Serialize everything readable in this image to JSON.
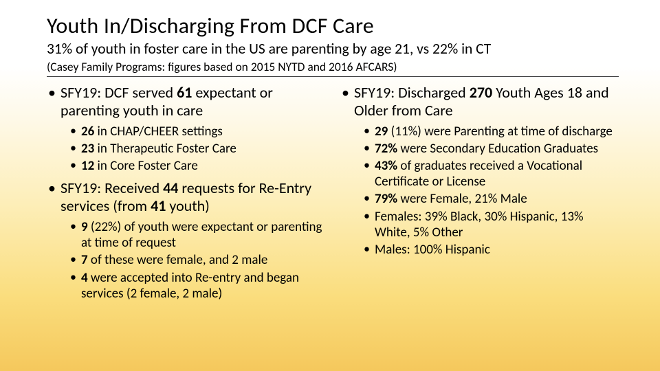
{
  "title": "Youth In/Discharging From DCF Care",
  "subtitle": "31% of youth in foster care in the US are parenting by age 21, vs 22% in CT",
  "source": "(Casey Family Programs: figures based on 2015 NYTD and 2016 AFCARS)",
  "colors": {
    "text": "#000000",
    "rule": "#3b3b3b",
    "bg_top": "#ffffff",
    "bg_bottom": "#f5c85c"
  },
  "typography": {
    "family": "Calibri",
    "title_size_pt": 24,
    "subtitle_size_pt": 16,
    "source_size_pt": 13,
    "lvl1_size_pt": 16,
    "lvl2_size_pt": 14
  },
  "left": {
    "items": [
      {
        "pre": "SFY19: DCF served ",
        "bold": "61",
        "post": " expectant or parenting youth in care",
        "sub": [
          {
            "pre": "",
            "bold": "26",
            "post": " in CHAP/CHEER settings"
          },
          {
            "pre": "",
            "bold": "23",
            "post": " in Therapeutic Foster Care"
          },
          {
            "pre": "",
            "bold": "12",
            "post": " in Core Foster Care"
          }
        ]
      },
      {
        "pre": "SFY19: Received ",
        "bold": "44",
        "post": " requests for Re-Entry services (from ",
        "bold2": "41",
        "post2": " youth)",
        "sub": [
          {
            "pre": "",
            "bold": "9",
            "post": " (22%) of youth were expectant or parenting at time of request"
          },
          {
            "pre": "",
            "bold": "7",
            "post": " of these were female, and 2 male"
          },
          {
            "pre": "",
            "bold": "4",
            "post": " were accepted into Re-entry and began services (2 female, 2 male)"
          }
        ]
      }
    ]
  },
  "right": {
    "items": [
      {
        "pre": "SFY19: Discharged ",
        "bold": "270",
        "post": " Youth Ages 18 and Older from Care",
        "sub": [
          {
            "pre": "",
            "bold": "29",
            "post": " (11%) were Parenting at time of discharge"
          },
          {
            "pre": "",
            "bold": "72%",
            "post": " were Secondary Education Graduates"
          },
          {
            "pre": "",
            "bold": "43%",
            "post": " of graduates received a Vocational Certificate or License"
          },
          {
            "pre": "",
            "bold": "79%",
            "post": " were Female, 21% Male"
          },
          {
            "pre": "Females: 39% Black, 30% Hispanic, 13% White, 5% Other",
            "bold": "",
            "post": ""
          },
          {
            "pre": "Males: 100% Hispanic",
            "bold": "",
            "post": ""
          }
        ]
      }
    ]
  }
}
